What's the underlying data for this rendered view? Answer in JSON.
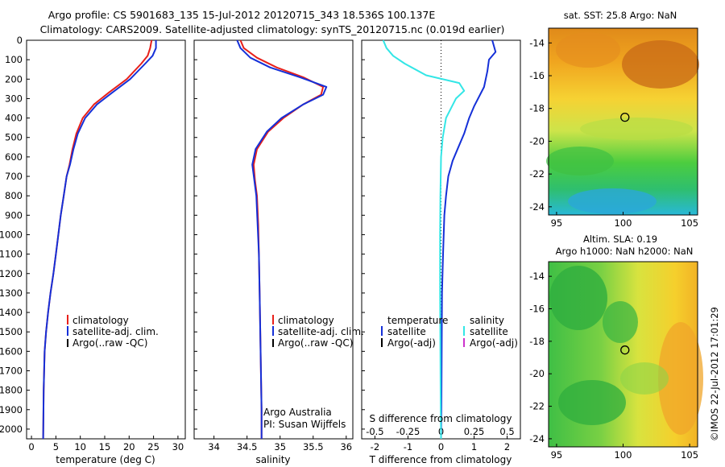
{
  "header": {
    "line1": "Argo profile: CS 5901683_135 15-Jul-2012 20120715_343 18.536S 100.137E",
    "line2": "Climatology: CARS2009. Satellite-adjusted climatology: synTS_20120715.nc (0.019d earlier)"
  },
  "footer": {
    "credit": "©IMOS 22-Jul-2012 17:01:29"
  },
  "colors": {
    "climatology": "#e8201a",
    "satellite": "#1530d8",
    "argo": "#000000",
    "sal_satellite": "#33e6e6",
    "argo_adj_sal": "#cc33cc",
    "zero_line": "#000000"
  },
  "chart_data": [
    {
      "type": "line",
      "panel": "temperature",
      "xlabel": "temperature (deg C)",
      "ylabel": "",
      "xlim": [
        -1,
        31.5
      ],
      "ylim": [
        2050,
        0
      ],
      "xticks": [
        "0",
        "5",
        "10",
        "15",
        "20",
        "25",
        "30"
      ],
      "xtick_values": [
        0,
        5,
        10,
        15,
        20,
        25,
        30
      ],
      "yticks": [
        "0",
        "100",
        "200",
        "300",
        "400",
        "500",
        "600",
        "700",
        "800",
        "900",
        "1000",
        "1100",
        "1200",
        "1300",
        "1400",
        "1500",
        "1600",
        "1700",
        "1800",
        "1900",
        "2000"
      ],
      "ytick_values": [
        0,
        100,
        200,
        300,
        400,
        500,
        600,
        700,
        800,
        900,
        1000,
        1100,
        1200,
        1300,
        1400,
        1500,
        1600,
        1700,
        1800,
        1900,
        2000
      ],
      "legend": [
        "climatology",
        "satellite-adj. clim.",
        "Argo(..raw -QC)"
      ],
      "series": [
        {
          "name": "climatology",
          "color": "#e8201a",
          "x": [
            24.6,
            24.3,
            23.8,
            22.5,
            19.5,
            15.8,
            12.8,
            10.5,
            9.2,
            8.4,
            7.8,
            7.2,
            6.6,
            6.0,
            5.5,
            5.0,
            4.5,
            3.9,
            3.4,
            3.0,
            2.7,
            2.5,
            2.4
          ],
          "y": [
            0,
            40,
            80,
            120,
            200,
            270,
            330,
            400,
            480,
            560,
            640,
            700,
            800,
            900,
            1000,
            1100,
            1200,
            1300,
            1400,
            1500,
            1600,
            1800,
            2050
          ]
        },
        {
          "name": "satellite-adj. clim.",
          "color": "#1530d8",
          "x": [
            25.5,
            25.5,
            24.8,
            23.3,
            20.2,
            16.5,
            13.4,
            11.0,
            9.5,
            8.6,
            7.9,
            7.2,
            6.6,
            6.0,
            5.5,
            5.0,
            4.5,
            3.9,
            3.4,
            3.0,
            2.7,
            2.5,
            2.4
          ],
          "y": [
            0,
            40,
            80,
            120,
            200,
            270,
            330,
            400,
            480,
            560,
            640,
            700,
            800,
            900,
            1000,
            1100,
            1200,
            1300,
            1400,
            1500,
            1600,
            1800,
            2050
          ]
        }
      ]
    },
    {
      "type": "line",
      "panel": "salinity",
      "xlabel": "salinity",
      "xlim": [
        33.7,
        36.1
      ],
      "ylim": [
        2050,
        0
      ],
      "xticks": [
        "34",
        "34.5",
        "35",
        "35.5",
        "36"
      ],
      "xtick_values": [
        34,
        34.5,
        35,
        35.5,
        36
      ],
      "legend": [
        "climatology",
        "satellite-adj. clim.",
        "Argo(..raw -QC)"
      ],
      "annotations": [
        "Argo Australia",
        "PI: Susan Wijffels"
      ],
      "series": [
        {
          "name": "climatology",
          "color": "#e8201a",
          "x": [
            34.4,
            34.45,
            34.65,
            34.95,
            35.35,
            35.65,
            35.62,
            35.35,
            35.05,
            34.82,
            34.65,
            34.6,
            34.62,
            34.65,
            34.67,
            34.68,
            34.69,
            34.7,
            34.71,
            34.72,
            34.72
          ],
          "y": [
            0,
            40,
            90,
            140,
            190,
            240,
            280,
            330,
            400,
            470,
            560,
            640,
            720,
            800,
            950,
            1100,
            1300,
            1500,
            1700,
            1900,
            2050
          ]
        },
        {
          "name": "satellite-adj. clim.",
          "color": "#1530d8",
          "x": [
            34.35,
            34.4,
            34.55,
            34.85,
            35.3,
            35.7,
            35.65,
            35.35,
            35.02,
            34.8,
            34.63,
            34.58,
            34.61,
            34.64,
            34.66,
            34.68,
            34.69,
            34.7,
            34.71,
            34.72,
            34.72
          ],
          "y": [
            0,
            40,
            90,
            140,
            190,
            240,
            280,
            330,
            400,
            470,
            560,
            640,
            720,
            800,
            950,
            1100,
            1300,
            1500,
            1700,
            1900,
            2050
          ]
        }
      ]
    },
    {
      "type": "line",
      "panel": "difference",
      "xlabel": "T difference from climatology",
      "xlabel_top": "S difference from climatology",
      "xlim": [
        -2.4,
        2.4
      ],
      "ylim": [
        2050,
        0
      ],
      "xticks": [
        "-2",
        "-1",
        "0",
        "1",
        "2"
      ],
      "xtick_values": [
        -2,
        -1,
        0,
        1,
        2
      ],
      "sticks": [
        "-0.5",
        "-0.25",
        "0",
        "0.25",
        "0.5"
      ],
      "legend_titles": [
        "temperature",
        "salinity"
      ],
      "legend_left": [
        "satellite",
        "Argo(-adj)"
      ],
      "legend_right": [
        "satellite",
        "Argo(-adj)"
      ],
      "series": [
        {
          "name": "temperature satellite",
          "color": "#1530d8",
          "x": [
            1.55,
            1.65,
            1.45,
            1.4,
            1.3,
            1.0,
            0.85,
            0.7,
            0.5,
            0.35,
            0.22,
            0.15,
            0.1,
            0.06,
            0.03,
            0.02,
            0.01,
            0.0
          ],
          "y": [
            0,
            60,
            100,
            160,
            240,
            340,
            400,
            480,
            560,
            620,
            700,
            800,
            900,
            1100,
            1300,
            1600,
            1900,
            2050
          ]
        },
        {
          "name": "salinity satellite",
          "color": "#33e6e6",
          "x": [
            -1.75,
            -1.65,
            -1.45,
            -1.1,
            -0.45,
            0.55,
            0.7,
            0.45,
            0.15,
            0.05,
            0.0,
            -0.02,
            -0.03,
            -0.03,
            -0.02,
            -0.01,
            0.0
          ],
          "y": [
            0,
            40,
            80,
            120,
            180,
            220,
            260,
            300,
            400,
            500,
            600,
            800,
            1000,
            1300,
            1600,
            1900,
            2050
          ]
        }
      ]
    }
  ],
  "maps": [
    {
      "title": "sat. SST: 25.8 Argo: NaN",
      "xticks": [
        "95",
        "100",
        "105"
      ],
      "xtick_values": [
        95,
        100,
        105
      ],
      "yticks": [
        "-14",
        "-16",
        "-18",
        "-20",
        "-22",
        "-24"
      ],
      "ytick_values": [
        -14,
        -16,
        -18,
        -20,
        -22,
        -24
      ],
      "xlim": [
        94.4,
        105.6
      ],
      "ylim": [
        -24.5,
        -13.1
      ],
      "marker": {
        "lon": 100.137,
        "lat": -18.536
      }
    },
    {
      "title_line1": "Altim. SLA: 0.19",
      "title_line2": "Argo h1000: NaN h2000: NaN",
      "xticks": [
        "95",
        "100",
        "105"
      ],
      "xtick_values": [
        95,
        100,
        105
      ],
      "yticks": [
        "-14",
        "-16",
        "-18",
        "-20",
        "-22",
        "-24"
      ],
      "ytick_values": [
        -14,
        -16,
        -18,
        -20,
        -22,
        -24
      ],
      "xlim": [
        94.4,
        105.6
      ],
      "ylim": [
        -24.5,
        -13.1
      ],
      "marker": {
        "lon": 100.137,
        "lat": -18.536
      }
    }
  ]
}
